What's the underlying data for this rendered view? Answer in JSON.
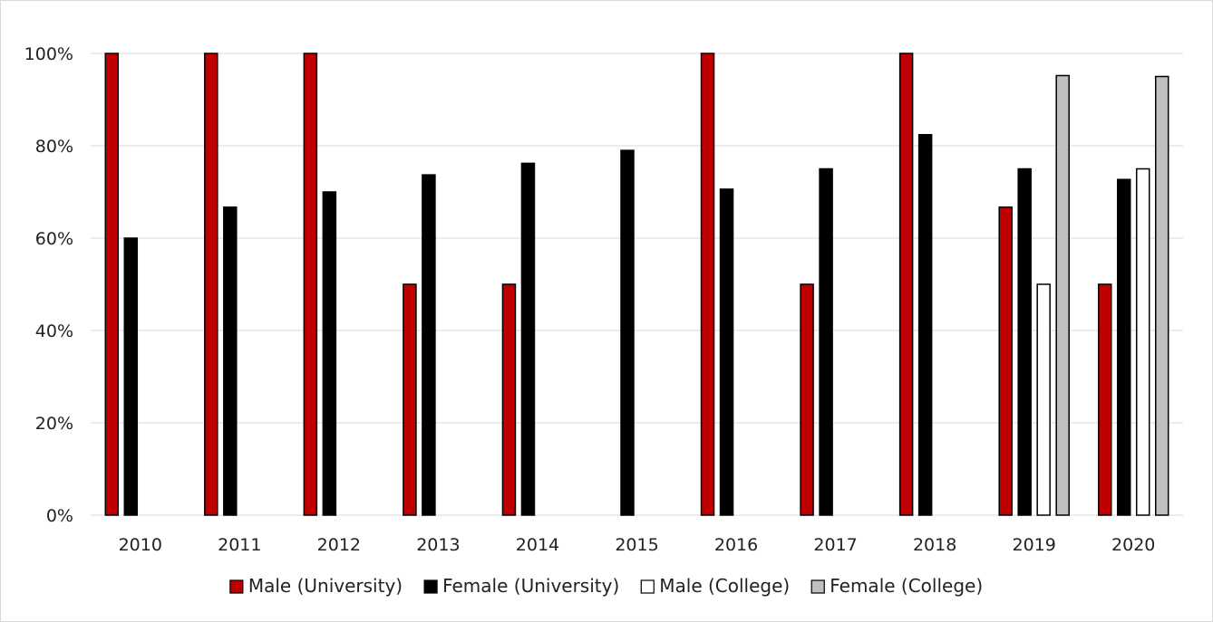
{
  "chart_data": {
    "type": "bar",
    "categories": [
      "2010",
      "2011",
      "2012",
      "2013",
      "2014",
      "2015",
      "2016",
      "2017",
      "2018",
      "2019",
      "2020"
    ],
    "series": [
      {
        "name": "Male (University)",
        "color": "#c00000",
        "values": [
          100,
          100,
          100,
          50,
          50,
          null,
          100,
          50,
          100,
          66.7,
          50
        ]
      },
      {
        "name": "Female (University)",
        "color": "#000000",
        "values": [
          60,
          66.7,
          70,
          73.7,
          76.2,
          79,
          70.6,
          75,
          82.4,
          75,
          72.7
        ]
      },
      {
        "name": "Male (College)",
        "color": "#ffffff",
        "values": [
          null,
          null,
          null,
          null,
          null,
          null,
          null,
          null,
          null,
          50,
          75
        ]
      },
      {
        "name": "Female (College)",
        "color": "#bfbfbf",
        "values": [
          null,
          null,
          null,
          null,
          null,
          null,
          null,
          null,
          null,
          95.2,
          95
        ]
      }
    ],
    "y_ticks": [
      "0%",
      "20%",
      "40%",
      "60%",
      "80%",
      "100%"
    ],
    "ylim": [
      0,
      100
    ],
    "title": "",
    "xlabel": "",
    "ylabel": "",
    "grid": true,
    "legend_position": "bottom"
  }
}
